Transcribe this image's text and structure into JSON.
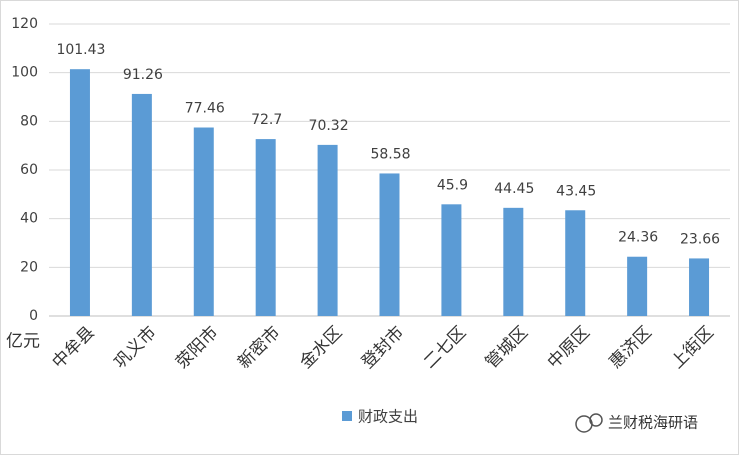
{
  "chart_data": {
    "type": "bar",
    "categories": [
      "中牟县",
      "巩义市",
      "荥阳市",
      "新密市",
      "金水区",
      "登封市",
      "二七区",
      "管城区",
      "中原区",
      "惠济区",
      "上街区"
    ],
    "series": [
      {
        "name": "财政支出",
        "color": "#5b9bd5",
        "values": [
          101.43,
          91.26,
          77.46,
          72.7,
          70.32,
          58.58,
          45.9,
          44.45,
          43.45,
          24.36,
          23.66
        ]
      }
    ],
    "ylim": [
      0,
      120
    ],
    "yticks": [
      0,
      20,
      40,
      60,
      80,
      100,
      120
    ],
    "grid": true,
    "y_unit": "亿元",
    "legend": "bottom"
  },
  "watermark": "兰财税海研语"
}
